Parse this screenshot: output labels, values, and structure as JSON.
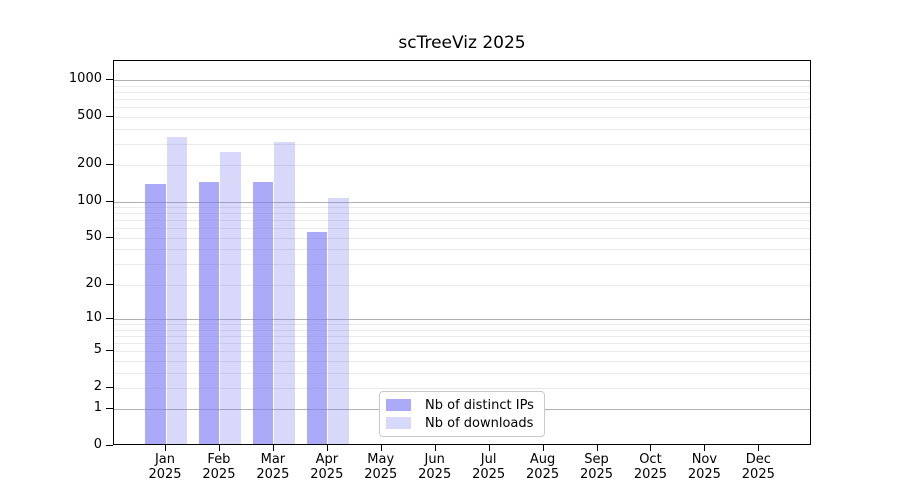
{
  "chart_data": {
    "type": "bar",
    "title": "scTreeViz 2025",
    "year": "2025",
    "categories": [
      "Jan",
      "Feb",
      "Mar",
      "Apr",
      "May",
      "Jun",
      "Jul",
      "Aug",
      "Sep",
      "Oct",
      "Nov",
      "Dec"
    ],
    "series": [
      {
        "name": "Nb of distinct IPs",
        "color": "rgba(124,124,244,0.65)",
        "values": [
          134,
          140,
          140,
          54,
          0,
          0,
          0,
          0,
          0,
          0,
          0,
          0
        ]
      },
      {
        "name": "Nb of downloads",
        "color": "rgba(125,125,240,0.3)",
        "values": [
          330,
          246,
          300,
          104,
          0,
          0,
          0,
          0,
          0,
          0,
          0,
          0
        ]
      }
    ],
    "xlabel": "",
    "ylabel": "",
    "y_scale": "log1p",
    "y_ticks": [
      0,
      1,
      2,
      5,
      10,
      20,
      50,
      100,
      200,
      500,
      1000
    ],
    "ylim": [
      0,
      1440
    ],
    "grid": {
      "major": [
        1,
        10,
        100,
        1000
      ],
      "minor": [
        2,
        3,
        4,
        5,
        6,
        7,
        8,
        9,
        20,
        30,
        40,
        50,
        60,
        70,
        80,
        90,
        200,
        300,
        400,
        500,
        600,
        700,
        800,
        900
      ]
    },
    "legend_position": "lower center"
  },
  "colors": {
    "grid_major": "#b0b0b0",
    "grid_minor": "#e9e9e9",
    "axis": "#000000",
    "background": "#ffffff"
  }
}
